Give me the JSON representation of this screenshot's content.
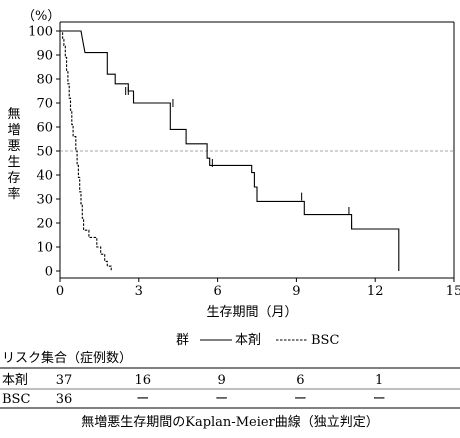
{
  "chart_data": {
    "type": "line",
    "title": "",
    "caption": "無増悪生存期間のKaplan-Meier曲線（独立判定）",
    "xlabel": "生存期間（月）",
    "ylabel": "無増悪生存率",
    "yunit": "（%）",
    "xlim": [
      0,
      15
    ],
    "ylim": [
      0,
      100
    ],
    "xticks": [
      0,
      3,
      6,
      9,
      12,
      15
    ],
    "yticks": [
      0,
      10,
      20,
      30,
      40,
      50,
      60,
      70,
      80,
      90,
      100
    ],
    "reference_line": {
      "y": 50,
      "style": "dashed"
    },
    "grid": false,
    "legend": {
      "title": "群",
      "placement": "bottom-center",
      "entries": [
        {
          "name": "本剤",
          "style": "solid"
        },
        {
          "name": "BSC",
          "style": "dashed"
        }
      ]
    },
    "series": [
      {
        "name": "本剤",
        "style": "solid",
        "steps": [
          [
            0,
            100
          ],
          [
            0.8,
            100
          ],
          [
            0.85,
            97
          ],
          [
            0.9,
            94
          ],
          [
            0.95,
            91
          ],
          [
            1.8,
            91
          ],
          [
            1.8,
            82
          ],
          [
            2.1,
            82
          ],
          [
            2.1,
            78
          ],
          [
            2.6,
            78
          ],
          [
            2.6,
            75
          ],
          [
            2.8,
            75
          ],
          [
            2.8,
            70
          ],
          [
            4.2,
            70
          ],
          [
            4.2,
            64
          ],
          [
            4.2,
            59
          ],
          [
            4.8,
            59
          ],
          [
            4.8,
            53
          ],
          [
            5.6,
            53
          ],
          [
            5.6,
            47
          ],
          [
            5.7,
            47
          ],
          [
            5.7,
            44
          ],
          [
            7.3,
            44
          ],
          [
            7.3,
            41
          ],
          [
            7.4,
            41
          ],
          [
            7.4,
            35
          ],
          [
            7.5,
            35
          ],
          [
            7.5,
            29
          ],
          [
            9.3,
            29
          ],
          [
            9.3,
            23.5
          ],
          [
            11.1,
            23.5
          ],
          [
            11.1,
            17.5
          ],
          [
            12.9,
            17.5
          ],
          [
            12.9,
            0
          ]
        ],
        "censored": [
          [
            2.5,
            75
          ],
          [
            2.6,
            75
          ],
          [
            2.8,
            72
          ],
          [
            4.3,
            70
          ],
          [
            5.8,
            45
          ],
          [
            9.2,
            31
          ],
          [
            11.0,
            25
          ],
          [
            11.1,
            19
          ]
        ]
      },
      {
        "name": "BSC",
        "style": "dashed",
        "steps": [
          [
            0,
            100
          ],
          [
            0.1,
            100
          ],
          [
            0.1,
            97
          ],
          [
            0.15,
            97
          ],
          [
            0.15,
            94
          ],
          [
            0.2,
            94
          ],
          [
            0.2,
            89
          ],
          [
            0.25,
            89
          ],
          [
            0.25,
            83
          ],
          [
            0.3,
            83
          ],
          [
            0.3,
            78
          ],
          [
            0.35,
            78
          ],
          [
            0.35,
            72
          ],
          [
            0.4,
            72
          ],
          [
            0.4,
            67
          ],
          [
            0.45,
            67
          ],
          [
            0.45,
            61
          ],
          [
            0.5,
            61
          ],
          [
            0.5,
            56
          ],
          [
            0.6,
            56
          ],
          [
            0.6,
            50
          ],
          [
            0.65,
            50
          ],
          [
            0.65,
            44
          ],
          [
            0.7,
            44
          ],
          [
            0.7,
            39
          ],
          [
            0.75,
            39
          ],
          [
            0.75,
            33
          ],
          [
            0.8,
            33
          ],
          [
            0.8,
            28
          ],
          [
            0.85,
            28
          ],
          [
            0.85,
            22
          ],
          [
            0.9,
            22
          ],
          [
            0.9,
            17
          ],
          [
            1.1,
            17
          ],
          [
            1.1,
            14
          ],
          [
            1.4,
            14
          ],
          [
            1.4,
            10
          ],
          [
            1.55,
            10
          ],
          [
            1.55,
            7
          ],
          [
            1.7,
            7
          ],
          [
            1.7,
            4
          ],
          [
            1.8,
            4
          ],
          [
            1.8,
            2
          ],
          [
            1.95,
            2
          ],
          [
            1.95,
            0
          ]
        ],
        "censored": []
      }
    ],
    "risk_table": {
      "title": "リスク集合（症例数）",
      "times": [
        0,
        3,
        6,
        9,
        12
      ],
      "rows": [
        {
          "label": "本剤",
          "values": [
            "37",
            "16",
            "9",
            "6",
            "1"
          ]
        },
        {
          "label": "BSC",
          "values": [
            "36",
            "ー",
            "ー",
            "ー",
            "ー"
          ]
        }
      ]
    }
  }
}
